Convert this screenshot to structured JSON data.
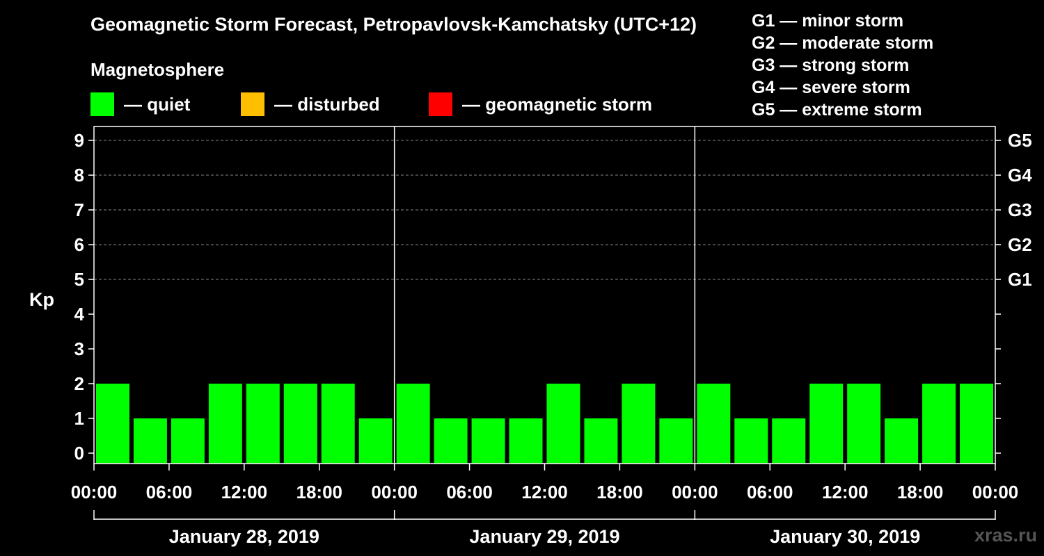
{
  "title": "Geomagnetic Storm Forecast, Petropavlovsk-Kamchatsky (UTC+12)",
  "legend": {
    "heading": "Magnetosphere",
    "items": [
      {
        "label": "— quiet",
        "color": "#00ff00"
      },
      {
        "label": "— disturbed",
        "color": "#ffbf00"
      },
      {
        "label": "— geomagnetic storm",
        "color": "#ff0000"
      }
    ]
  },
  "storm_levels": [
    "G1 — minor storm",
    "G2 — moderate storm",
    "G3 — strong storm",
    "G4 — severe storm",
    "G5 — extreme storm"
  ],
  "watermark": "xras.ru",
  "chart_data": {
    "type": "bar",
    "ylabel": "Kp",
    "ylim": [
      0,
      9
    ],
    "yticks": [
      "0",
      "1",
      "2",
      "3",
      "4",
      "5",
      "6",
      "7",
      "8",
      "9"
    ],
    "right_axis_labels": [
      {
        "value": 5,
        "label": "G1"
      },
      {
        "value": 6,
        "label": "G2"
      },
      {
        "value": 7,
        "label": "G3"
      },
      {
        "value": 8,
        "label": "G4"
      },
      {
        "value": 9,
        "label": "G5"
      }
    ],
    "xtick_labels": [
      "00:00",
      "06:00",
      "12:00",
      "18:00",
      "00:00",
      "06:00",
      "12:00",
      "18:00",
      "00:00",
      "06:00",
      "12:00",
      "18:00",
      "00:00"
    ],
    "days": [
      "January 28, 2019",
      "January 29, 2019",
      "January 30, 2019"
    ],
    "interval_hours": 3,
    "values": [
      2,
      1,
      1,
      2,
      2,
      2,
      2,
      1,
      2,
      1,
      1,
      1,
      2,
      1,
      2,
      1,
      2,
      1,
      1,
      2,
      2,
      1,
      2,
      2
    ],
    "grid": true
  }
}
